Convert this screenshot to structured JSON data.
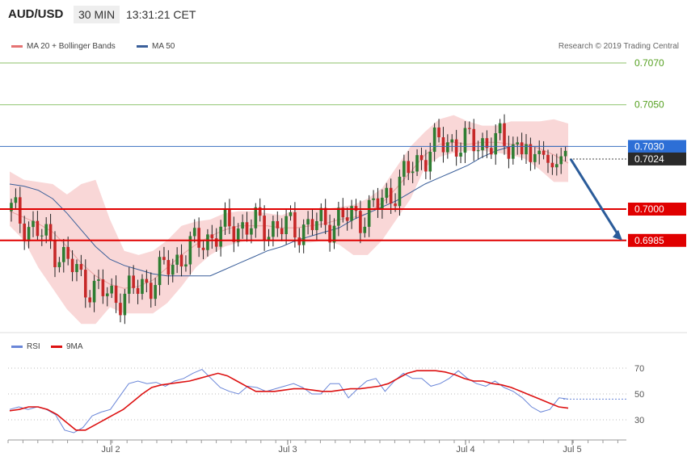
{
  "header": {
    "symbol": "AUD/USD",
    "interval": "30 MIN",
    "time": "13:31:21 CET"
  },
  "legend_top": {
    "ma20_label": "MA 20 + Bollinger Bands",
    "ma50_label": "MA 50",
    "ma20_color": "#e57373",
    "ma50_color": "#3a5f9a"
  },
  "credit": "Research © 2019 Trading Central",
  "legend_bottom": {
    "rsi_label": "RSI",
    "ma9_label": "9MA",
    "rsi_color": "#6a86d8",
    "ma9_color": "#dd1111"
  },
  "chart_data": [
    {
      "type": "candlestick",
      "title": "",
      "ylim": [
        0.6935,
        0.708
      ],
      "ytick_labels": [
        "0.7070",
        "0.7050"
      ],
      "xtick_labels": [
        "Jul 2",
        "Jul 3",
        "Jul 4",
        "Jul 5"
      ],
      "horizontal_levels": [
        {
          "label": "0.7070",
          "value": 0.707,
          "kind": "grid"
        },
        {
          "label": "0.7050",
          "value": 0.705,
          "kind": "grid"
        },
        {
          "label": "0.7030",
          "value": 0.703,
          "kind": "resistance",
          "color": "#3a6fbf"
        },
        {
          "label": "0.7024",
          "value": 0.7024,
          "kind": "last-price",
          "color": "#222222"
        },
        {
          "label": "0.7000",
          "value": 0.7,
          "kind": "support",
          "color": "#e00000"
        },
        {
          "label": "0.6985",
          "value": 0.6985,
          "kind": "support",
          "color": "#e00000"
        }
      ],
      "forecast_arrow": {
        "from": 0.7024,
        "to": 0.6985,
        "color": "#2b5c9a"
      },
      "candles": [],
      "series": [
        {
          "name": "MA 20 + Bollinger Bands",
          "kind": "ma20",
          "values": [
            0.6999,
            0.6996,
            0.6993,
            0.6989,
            0.6982,
            0.6974,
            0.6968,
            0.6964,
            0.6962,
            0.6963,
            0.6966,
            0.6972,
            0.6978,
            0.6983,
            0.6987,
            0.699,
            0.6992,
            0.6992,
            0.6992,
            0.6991,
            0.6991,
            0.6992,
            0.6993,
            0.6995,
            0.6996,
            0.6998,
            0.7003,
            0.701,
            0.7018,
            0.7026,
            0.7031,
            0.7032,
            0.7031,
            0.7032,
            0.7032,
            0.7031,
            0.7031,
            0.7029,
            0.7026,
            0.7022
          ]
        },
        {
          "name": "MA 50",
          "kind": "ma50",
          "values": [
            0.7012,
            0.7011,
            0.7009,
            0.7005,
            0.6998,
            0.699,
            0.6982,
            0.6976,
            0.6973,
            0.6971,
            0.6969,
            0.6968,
            0.6968,
            0.6968,
            0.6968,
            0.6971,
            0.6974,
            0.6977,
            0.698,
            0.6982,
            0.6985,
            0.6987,
            0.6989,
            0.6991,
            0.6995,
            0.6998,
            0.7001,
            0.7004,
            0.7008,
            0.7012,
            0.7015,
            0.7018,
            0.7021,
            0.7025,
            0.7028,
            0.703,
            0.703,
            0.703,
            0.703,
            0.703
          ]
        },
        {
          "name": "BB upper",
          "kind": "bb-upper",
          "values": [
            0.7018,
            0.7014,
            0.7013,
            0.7012,
            0.7007,
            0.7012,
            0.7014,
            0.6995,
            0.698,
            0.6978,
            0.698,
            0.6985,
            0.6992,
            0.6994,
            0.6995,
            0.6998,
            0.6999,
            0.6999,
            0.6998,
            0.6997,
            0.7,
            0.7,
            0.7,
            0.7001,
            0.7002,
            0.7005,
            0.701,
            0.702,
            0.703,
            0.7037,
            0.7043,
            0.7045,
            0.7042,
            0.704,
            0.704,
            0.7042,
            0.7042,
            0.7042,
            0.7043,
            0.7041
          ]
        },
        {
          "name": "BB lower",
          "kind": "bb-lower",
          "values": [
            0.6992,
            0.6985,
            0.6972,
            0.6962,
            0.6952,
            0.6945,
            0.6945,
            0.6953,
            0.695,
            0.695,
            0.695,
            0.6955,
            0.6963,
            0.6972,
            0.6978,
            0.6982,
            0.6984,
            0.6985,
            0.6985,
            0.6985,
            0.6984,
            0.6984,
            0.6985,
            0.6983,
            0.6978,
            0.6978,
            0.6985,
            0.6995,
            0.7005,
            0.702,
            0.7025,
            0.7027,
            0.7028,
            0.7028,
            0.7027,
            0.7026,
            0.7024,
            0.7019,
            0.7013,
            0.7013
          ]
        }
      ]
    },
    {
      "type": "line",
      "title": "",
      "ylim": [
        20,
        85
      ],
      "ytick_labels": [
        "70",
        "50",
        "30"
      ],
      "yticks": [
        70,
        50,
        30
      ],
      "series": [
        {
          "name": "RSI",
          "values": [
            38,
            40,
            38,
            40,
            38,
            34,
            22,
            20,
            24,
            33,
            36,
            38,
            48,
            58,
            60,
            58,
            59,
            56,
            60,
            62,
            66,
            69,
            62,
            55,
            52,
            50,
            56,
            55,
            52,
            54,
            56,
            58,
            55,
            50,
            50,
            58,
            58,
            47,
            54,
            60,
            62,
            52,
            60,
            66,
            62,
            62,
            56,
            58,
            62,
            68,
            62,
            58,
            56,
            60,
            55,
            52,
            47,
            40,
            36,
            38,
            47,
            46
          ]
        },
        {
          "name": "9MA",
          "values": [
            37,
            38,
            40,
            40,
            38,
            34,
            28,
            22,
            22,
            26,
            30,
            34,
            38,
            44,
            50,
            55,
            57,
            58,
            59,
            60,
            62,
            64,
            66,
            64,
            60,
            56,
            52,
            52,
            52,
            53,
            54,
            54,
            53,
            52,
            52,
            53,
            54,
            54,
            55,
            56,
            58,
            62,
            66,
            68,
            68,
            68,
            67,
            65,
            62,
            60,
            60,
            58,
            57,
            55,
            52,
            49,
            46,
            43,
            40,
            39
          ]
        }
      ],
      "extension_level": 46
    }
  ]
}
